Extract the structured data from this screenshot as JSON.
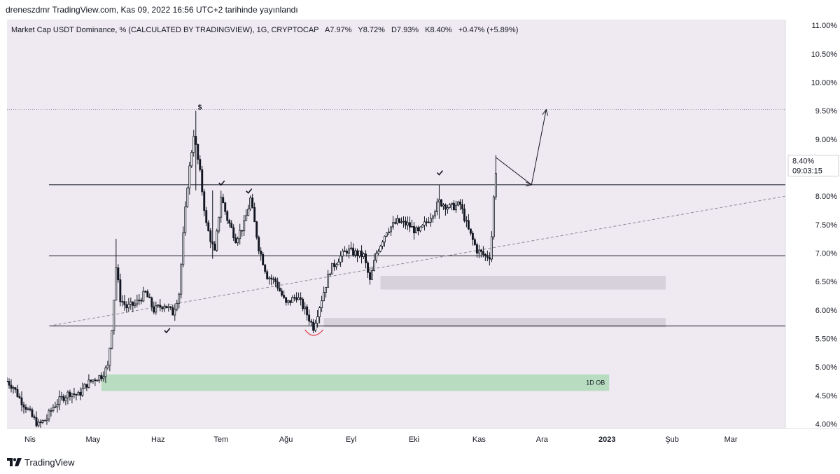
{
  "header": {
    "published": "dreneszdmr TradingView.com, Kas 09, 2022 16:56 UTC+2 tarihinde yayınlandı"
  },
  "legend": {
    "symbol": "Market Cap USDT Dominance, %  (CALCULATED BY TRADINGVIEW), 1G, CRYPTOCAP",
    "open": "A7.97%",
    "high": "Y8.72%",
    "low": "D7.93%",
    "close": "K8.40%",
    "change": "+0.47% (+5.89%)"
  },
  "footer": {
    "brand": "TradingView"
  },
  "colors": {
    "background": "#efe9f1",
    "candle": "#131722",
    "grey_zone": "#d7d1dc",
    "green_zone": "#b8dcc0",
    "red_arc": "#e0404a",
    "dashed": "#8a8a95"
  },
  "chart_data": {
    "type": "candlestick",
    "y_unit": "%",
    "ylim": [
      3.92,
      11.1
    ],
    "y_ticks": [
      "4.00%",
      "4.50%",
      "5.00%",
      "5.50%",
      "6.00%",
      "6.50%",
      "7.00%",
      "7.50%",
      "8.00%",
      "8.50%",
      "9.00%",
      "9.50%",
      "10.00%",
      "10.50%",
      "11.00%"
    ],
    "y_tick_values": [
      4.0,
      4.5,
      5.0,
      5.5,
      6.0,
      6.5,
      7.0,
      7.5,
      8.0,
      8.5,
      9.0,
      9.5,
      10.0,
      10.5,
      11.0
    ],
    "x_labels": [
      {
        "label": "Nis",
        "date": "2022-04-01"
      },
      {
        "label": "May",
        "date": "2022-05-01"
      },
      {
        "label": "Haz",
        "date": "2022-06-01"
      },
      {
        "label": "Tem",
        "date": "2022-07-01"
      },
      {
        "label": "Ağu",
        "date": "2022-08-01"
      },
      {
        "label": "Eyl",
        "date": "2022-09-01"
      },
      {
        "label": "Eki",
        "date": "2022-10-01"
      },
      {
        "label": "Kas",
        "date": "2022-11-01"
      },
      {
        "label": "Ara",
        "date": "2022-12-01"
      },
      {
        "label": "2023",
        "date": "2023-01-01",
        "bold": true
      },
      {
        "label": "Şub",
        "date": "2023-02-01"
      },
      {
        "label": "Mar",
        "date": "2023-03-01"
      }
    ],
    "x_range": [
      "2022-03-21",
      "2023-03-27"
    ],
    "last_price": {
      "label": "8.40%",
      "countdown": "09:03:15",
      "value": 8.4
    },
    "close_path": [
      {
        "date": "2022-03-21",
        "close": 4.75
      },
      {
        "date": "2022-03-24",
        "close": 4.65
      },
      {
        "date": "2022-03-27",
        "close": 4.45
      },
      {
        "date": "2022-03-30",
        "close": 4.3
      },
      {
        "date": "2022-04-02",
        "close": 4.12
      },
      {
        "date": "2022-04-05",
        "close": 3.98
      },
      {
        "date": "2022-04-09",
        "close": 4.1
      },
      {
        "date": "2022-04-12",
        "close": 4.3
      },
      {
        "date": "2022-04-16",
        "close": 4.45
      },
      {
        "date": "2022-04-20",
        "close": 4.55
      },
      {
        "date": "2022-04-24",
        "close": 4.5
      },
      {
        "date": "2022-04-28",
        "close": 4.7
      },
      {
        "date": "2022-05-02",
        "close": 4.8
      },
      {
        "date": "2022-05-05",
        "close": 4.85
      },
      {
        "date": "2022-05-08",
        "close": 5.0
      },
      {
        "date": "2022-05-10",
        "close": 5.7
      },
      {
        "date": "2022-05-11",
        "close": 6.2
      },
      {
        "date": "2022-05-12",
        "close": 6.75
      },
      {
        "date": "2022-05-14",
        "close": 6.2
      },
      {
        "date": "2022-05-17",
        "close": 6.05
      },
      {
        "date": "2022-05-21",
        "close": 6.1
      },
      {
        "date": "2022-05-26",
        "close": 6.3
      },
      {
        "date": "2022-05-30",
        "close": 6.0
      },
      {
        "date": "2022-06-04",
        "close": 6.1
      },
      {
        "date": "2022-06-08",
        "close": 5.95
      },
      {
        "date": "2022-06-11",
        "close": 6.3
      },
      {
        "date": "2022-06-13",
        "close": 7.3
      },
      {
        "date": "2022-06-15",
        "close": 8.2
      },
      {
        "date": "2022-06-18",
        "close": 9.1
      },
      {
        "date": "2022-06-21",
        "close": 8.4
      },
      {
        "date": "2022-06-24",
        "close": 7.5
      },
      {
        "date": "2022-06-28",
        "close": 7.0
      },
      {
        "date": "2022-07-01",
        "close": 8.0
      },
      {
        "date": "2022-07-04",
        "close": 7.6
      },
      {
        "date": "2022-07-08",
        "close": 7.25
      },
      {
        "date": "2022-07-12",
        "close": 7.5
      },
      {
        "date": "2022-07-15",
        "close": 7.95
      },
      {
        "date": "2022-07-19",
        "close": 7.1
      },
      {
        "date": "2022-07-23",
        "close": 6.6
      },
      {
        "date": "2022-07-27",
        "close": 6.5
      },
      {
        "date": "2022-08-01",
        "close": 6.1
      },
      {
        "date": "2022-08-06",
        "close": 6.25
      },
      {
        "date": "2022-08-10",
        "close": 6.0
      },
      {
        "date": "2022-08-14",
        "close": 5.7
      },
      {
        "date": "2022-08-18",
        "close": 6.2
      },
      {
        "date": "2022-08-22",
        "close": 6.7
      },
      {
        "date": "2022-08-26",
        "close": 6.9
      },
      {
        "date": "2022-08-30",
        "close": 7.05
      },
      {
        "date": "2022-09-03",
        "close": 7.0
      },
      {
        "date": "2022-09-07",
        "close": 6.95
      },
      {
        "date": "2022-09-10",
        "close": 6.5
      },
      {
        "date": "2022-09-13",
        "close": 7.0
      },
      {
        "date": "2022-09-18",
        "close": 7.4
      },
      {
        "date": "2022-09-23",
        "close": 7.55
      },
      {
        "date": "2022-09-28",
        "close": 7.5
      },
      {
        "date": "2022-10-03",
        "close": 7.35
      },
      {
        "date": "2022-10-08",
        "close": 7.6
      },
      {
        "date": "2022-10-13",
        "close": 7.9
      },
      {
        "date": "2022-10-18",
        "close": 7.8
      },
      {
        "date": "2022-10-23",
        "close": 7.85
      },
      {
        "date": "2022-10-27",
        "close": 7.4
      },
      {
        "date": "2022-10-31",
        "close": 7.05
      },
      {
        "date": "2022-11-04",
        "close": 6.95
      },
      {
        "date": "2022-11-06",
        "close": 6.95
      },
      {
        "date": "2022-11-07",
        "close": 7.3
      },
      {
        "date": "2022-11-08",
        "close": 7.97
      },
      {
        "date": "2022-11-09",
        "close": 8.4
      }
    ],
    "highlights": [
      {
        "date": "2022-05-12",
        "high": 7.25,
        "low": 6.3
      },
      {
        "date": "2022-06-19",
        "high": 9.5,
        "low": 8.1
      },
      {
        "date": "2022-06-27",
        "high": 8.1,
        "low": 6.9
      },
      {
        "date": "2022-10-13",
        "high": 8.2,
        "low": 7.6
      },
      {
        "date": "2022-11-09",
        "high": 8.72,
        "low": 7.93
      }
    ],
    "horizontal_levels": [
      8.2,
      6.95,
      5.72
    ],
    "dotted_level": 9.52,
    "trendline": {
      "from": {
        "date": "2022-04-10",
        "value": 5.72
      },
      "to": {
        "date": "2023-03-27",
        "value": 8.0
      }
    },
    "zones": [
      {
        "from": "2022-09-15",
        "to": "2023-01-29",
        "low": 6.36,
        "high": 6.6,
        "kind": "grey"
      },
      {
        "from": "2022-08-19",
        "to": "2023-01-29",
        "low": 5.7,
        "high": 5.86,
        "kind": "grey"
      },
      {
        "from": "2022-05-05",
        "to": "2023-01-02",
        "low": 4.58,
        "high": 4.87,
        "kind": "green",
        "label": "1D OB"
      }
    ],
    "projection": [
      {
        "date": "2022-11-09",
        "value": 8.68
      },
      {
        "date": "2022-11-26",
        "value": 8.2
      },
      {
        "date": "2022-12-03",
        "value": 9.52
      }
    ],
    "marks": [
      {
        "date": "2022-06-20",
        "value": 9.52,
        "text": "$"
      },
      {
        "date": "2022-06-05",
        "value": 5.63,
        "kind": "check"
      },
      {
        "date": "2022-07-01",
        "value": 8.22,
        "kind": "check"
      },
      {
        "date": "2022-07-14",
        "value": 8.08,
        "kind": "check"
      },
      {
        "date": "2022-10-13",
        "value": 8.4,
        "kind": "check"
      }
    ],
    "arc": {
      "date": "2022-08-14",
      "value": 5.58
    }
  }
}
